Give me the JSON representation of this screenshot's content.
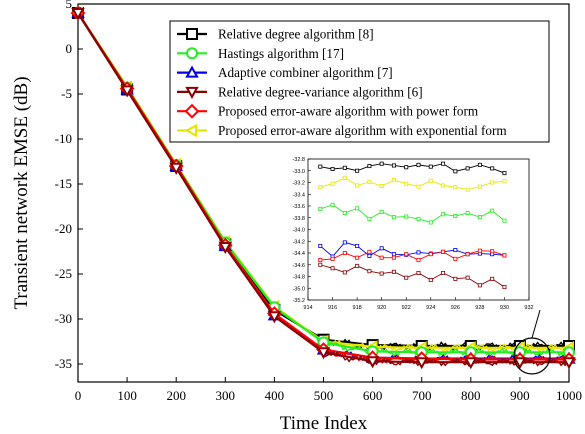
{
  "chart_data": [
    {
      "type": "line",
      "xlabel": "Time Index",
      "ylabel": "Transient network EMSE (dB)",
      "xlim": [
        0,
        1000
      ],
      "ylim": [
        -37,
        5
      ],
      "x_ticks": [
        "0",
        "100",
        "200",
        "300",
        "400",
        "500",
        "600",
        "700",
        "800",
        "900",
        "1000"
      ],
      "y_ticks": [
        "5",
        "0",
        "-5",
        "-10",
        "-15",
        "-20",
        "-25",
        "-30",
        "-35"
      ],
      "legend_position": "top-right",
      "grid": false,
      "x": [
        0,
        100,
        200,
        300,
        400,
        500,
        600,
        700,
        800,
        900,
        1000
      ],
      "series": [
        {
          "name": "Relative degree algorithm [8]",
          "color": "#000000",
          "marker": "square",
          "values": [
            4.0,
            -4.5,
            -13.0,
            -21.7,
            -29.0,
            -32.3,
            -32.9,
            -33.0,
            -33.0,
            -33.0,
            -33.0
          ]
        },
        {
          "name": " Hastings algorithm [17]",
          "color": "#22ee22",
          "marker": "circle",
          "values": [
            4.0,
            -4.3,
            -12.9,
            -21.5,
            -28.7,
            -32.6,
            -33.6,
            -33.7,
            -33.7,
            -33.7,
            -33.7
          ]
        },
        {
          "name": "Adaptive combiner algorithm [7]",
          "color": "#0000ee",
          "marker": "triangle-up",
          "values": [
            4.0,
            -4.5,
            -13.0,
            -21.9,
            -29.6,
            -33.4,
            -34.3,
            -34.4,
            -34.4,
            -34.4,
            -34.4
          ]
        },
        {
          "name": "Relative degree-variance algorithm [6]",
          "color": "#8b0000",
          "marker": "triangle-down",
          "values": [
            4.0,
            -4.6,
            -13.2,
            -22.0,
            -29.7,
            -33.7,
            -34.7,
            -34.8,
            -34.8,
            -34.8,
            -34.8
          ]
        },
        {
          "name": "Proposed error-aware algorithm with power form",
          "color": "#ff0000",
          "marker": "diamond",
          "values": [
            4.0,
            -4.4,
            -13.0,
            -21.8,
            -29.4,
            -33.4,
            -34.3,
            -34.4,
            -34.5,
            -34.5,
            -34.5
          ]
        },
        {
          "name": "Proposed error-aware algorithm with exponential form",
          "color": "#e6e600",
          "marker": "triangle-left",
          "values": [
            4.0,
            -4.2,
            -12.8,
            -21.4,
            -28.6,
            -32.5,
            -33.1,
            -33.2,
            -33.2,
            -33.2,
            -33.2
          ]
        }
      ]
    },
    {
      "type": "line",
      "inset": true,
      "xlim": [
        914,
        932
      ],
      "ylim": [
        -35.2,
        -32.8
      ],
      "x_ticks": [
        "914",
        "916",
        "918",
        "920",
        "922",
        "924",
        "926",
        "928",
        "930",
        "932"
      ],
      "y_ticks": [
        "-32.8",
        "-33.0",
        "-33.2",
        "-33.4",
        "-33.6",
        "-33.8",
        "-34.0",
        "-34.2",
        "-34.4",
        "-34.6",
        "-34.8",
        "-35.0",
        "-35.2"
      ],
      "x": [
        915,
        916,
        917,
        918,
        919,
        920,
        921,
        922,
        923,
        924,
        925,
        926,
        927,
        928,
        929,
        930
      ],
      "series": [
        {
          "color": "#000000",
          "values": [
            -32.93,
            -32.97,
            -32.95,
            -33.0,
            -32.92,
            -32.88,
            -32.91,
            -32.94,
            -32.9,
            -32.93,
            -32.88,
            -33.01,
            -32.96,
            -32.9,
            -32.96,
            -33.04
          ]
        },
        {
          "color": "#e6e600",
          "values": [
            -33.28,
            -33.22,
            -33.12,
            -33.25,
            -33.19,
            -33.26,
            -33.16,
            -33.22,
            -33.27,
            -33.17,
            -33.25,
            -33.28,
            -33.32,
            -33.27,
            -33.2,
            -33.18
          ]
        },
        {
          "color": "#22ee22",
          "values": [
            -33.65,
            -33.58,
            -33.72,
            -33.64,
            -33.82,
            -33.7,
            -33.79,
            -33.78,
            -33.82,
            -33.88,
            -33.74,
            -33.77,
            -33.72,
            -33.79,
            -33.68,
            -33.85
          ]
        },
        {
          "color": "#0000ee",
          "values": [
            -34.28,
            -34.46,
            -34.22,
            -34.28,
            -34.45,
            -34.32,
            -34.42,
            -34.43,
            -34.39,
            -34.41,
            -34.38,
            -34.35,
            -34.42,
            -34.41,
            -34.42,
            -34.44
          ]
        },
        {
          "color": "#ff0000",
          "values": [
            -34.52,
            -34.5,
            -34.4,
            -34.48,
            -34.38,
            -34.48,
            -34.48,
            -34.42,
            -34.52,
            -34.42,
            -34.38,
            -34.5,
            -34.42,
            -34.36,
            -34.37,
            -34.44
          ]
        },
        {
          "color": "#8b0000",
          "values": [
            -34.6,
            -34.66,
            -34.73,
            -34.62,
            -34.71,
            -34.75,
            -34.72,
            -34.82,
            -34.74,
            -34.86,
            -34.74,
            -34.84,
            -34.82,
            -34.95,
            -34.84,
            -34.98
          ]
        }
      ]
    }
  ]
}
